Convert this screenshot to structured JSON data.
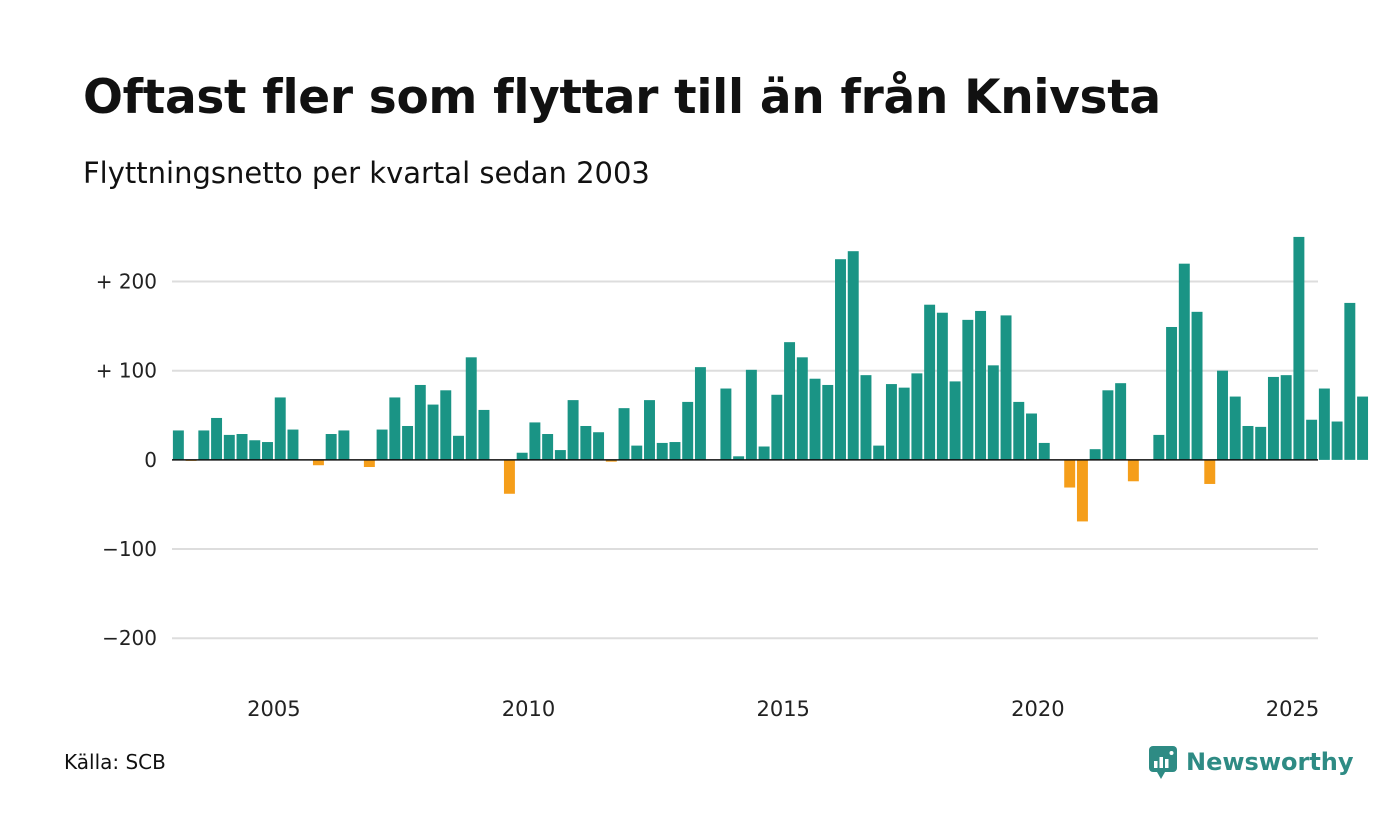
{
  "title": "Oftast fler som flyttar till än från Knivsta",
  "subtitle": "Flyttningsnetto per kvartal sedan 2003",
  "source": "Källa: SCB",
  "brand": {
    "name": "Newsworthy",
    "icon": "newsworthy-logo-icon"
  },
  "colors": {
    "positive": "#1a9485",
    "negative": "#f59e1a",
    "grid": "#dddddd",
    "axis": "#111111"
  },
  "chart_data": {
    "type": "bar",
    "title": "Oftast fler som flyttar till än från Knivsta",
    "subtitle": "Flyttningsnetto per kvartal sedan 2003",
    "xlabel": "",
    "ylabel": "",
    "ylim": [
      -230,
      260
    ],
    "xlim": [
      2003.0,
      2025.5
    ],
    "grid": true,
    "y_ticks": [
      {
        "value": 200,
        "label": "+ 200"
      },
      {
        "value": 100,
        "label": "+ 100"
      },
      {
        "value": 0,
        "label": "0"
      },
      {
        "value": -100,
        "label": "−100"
      },
      {
        "value": -200,
        "label": "−200"
      }
    ],
    "x_ticks": [
      {
        "value": 2005,
        "label": "2005"
      },
      {
        "value": 2010,
        "label": "2010"
      },
      {
        "value": 2015,
        "label": "2015"
      },
      {
        "value": 2020,
        "label": "2020"
      },
      {
        "value": 2025,
        "label": "2025"
      }
    ],
    "series": [
      {
        "start_year": 2003,
        "start_quarter": 1,
        "values": [
          33,
          -1,
          33,
          47,
          28,
          29,
          22,
          20,
          70,
          34,
          0,
          -6,
          29,
          33,
          0,
          -8,
          34,
          70,
          38,
          84,
          62,
          78,
          27,
          115,
          56,
          0,
          -38,
          8,
          42,
          29,
          11,
          67,
          38,
          31,
          -2,
          58,
          16,
          67,
          19,
          20,
          65,
          104,
          0,
          80,
          4,
          101,
          15,
          73,
          132,
          115,
          91,
          84,
          225,
          234,
          95,
          16,
          85,
          81,
          97,
          174,
          165,
          88,
          157,
          167,
          106,
          162,
          65,
          52,
          19,
          0,
          -31,
          -69,
          12,
          78,
          86,
          -24,
          0,
          28,
          149,
          220,
          166,
          -27,
          100,
          71,
          38,
          37,
          93,
          95,
          250,
          45,
          80,
          43,
          176,
          71
        ]
      }
    ]
  }
}
